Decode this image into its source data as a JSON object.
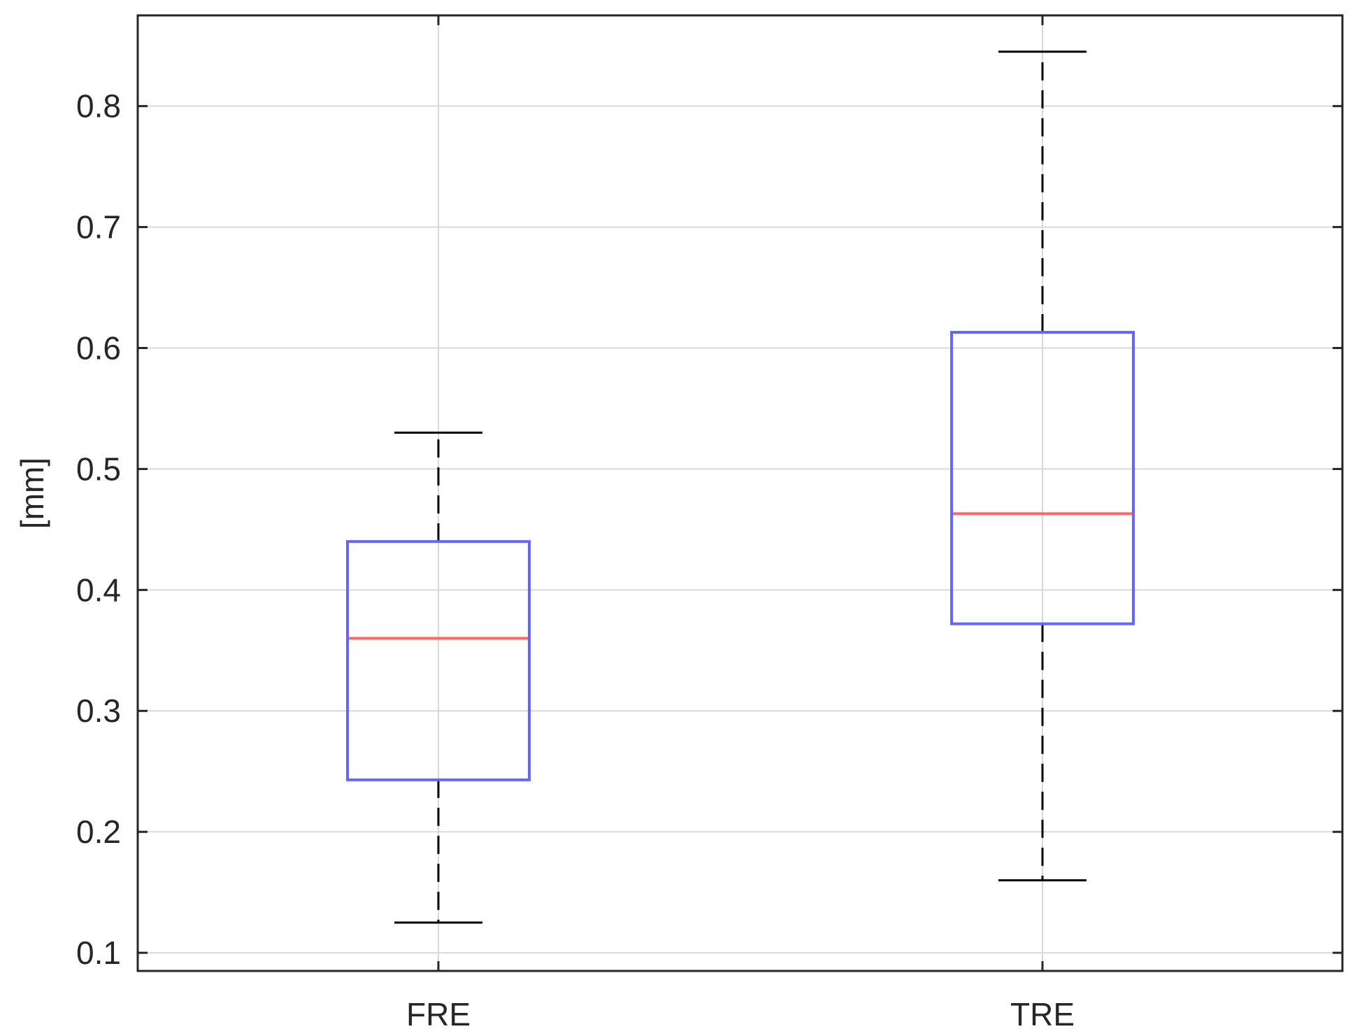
{
  "chart_data": {
    "type": "box",
    "title": "",
    "xlabel": "",
    "ylabel": "[mm]",
    "categories": [
      "FRE",
      "TRE"
    ],
    "ylim": [
      0.085,
      0.875
    ],
    "yticks": [
      0.1,
      0.2,
      0.3,
      0.4,
      0.5,
      0.6,
      0.7,
      0.8
    ],
    "ytick_labels": [
      "0.1",
      "0.2",
      "0.3",
      "0.4",
      "0.5",
      "0.6",
      "0.7",
      "0.8"
    ],
    "grid": true,
    "boxes": [
      {
        "category": "FRE",
        "whisker_low": 0.125,
        "q1": 0.243,
        "median": 0.36,
        "q3": 0.44,
        "whisker_high": 0.53
      },
      {
        "category": "TRE",
        "whisker_low": 0.16,
        "q1": 0.372,
        "median": 0.463,
        "q3": 0.613,
        "whisker_high": 0.845
      }
    ],
    "colors": {
      "box": "#6666ff",
      "median": "#ff6666",
      "whisker": "#000000",
      "grid": "#d9d9d9",
      "axis": "#262626",
      "text": "#262626"
    }
  }
}
